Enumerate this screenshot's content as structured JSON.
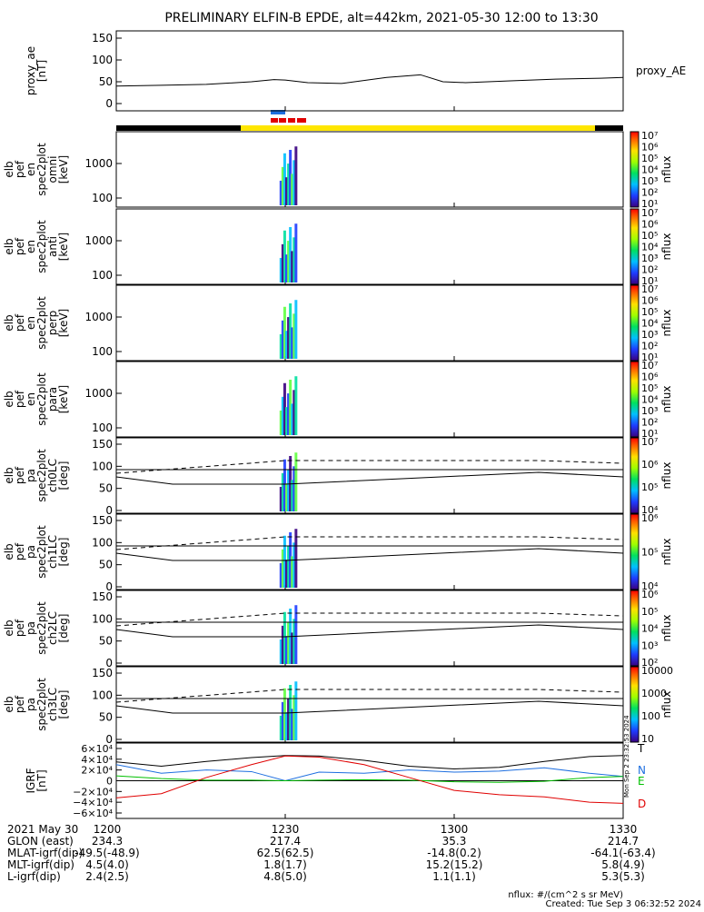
{
  "title": "PRELIMINARY ELFIN-B EPDE, alt=442km, 2021-05-30 12:00 to 13:30",
  "colors": {
    "black": "#000000",
    "yellow": "#ffe600",
    "blue": "#1e6fe0",
    "red": "#e00000",
    "green": "#00c000",
    "axis": "#000000"
  },
  "x_axis": {
    "tick_labels": [
      "1200",
      "1230",
      "1300",
      "1330"
    ]
  },
  "panels": [
    {
      "id": "proxy_ae",
      "ylabel_lines": [
        "proxy_ae",
        "[nT]"
      ],
      "yticks": [
        "0",
        "50",
        "100",
        "150"
      ],
      "right_label": "proxy_AE"
    },
    {
      "id": "en_omni",
      "ylabel_lines": [
        "elb",
        "pef",
        "en",
        "spec2plot",
        "omni",
        "[keV]"
      ],
      "yticks": [
        "100",
        "1000"
      ],
      "colorbar_label": "nflux",
      "colorbar_ticks": [
        "10¹",
        "10²",
        "10³",
        "10⁴",
        "10⁵",
        "10⁶",
        "10⁷"
      ]
    },
    {
      "id": "en_anti",
      "ylabel_lines": [
        "elb",
        "pef",
        "en",
        "spec2plot",
        "anti",
        "[keV]"
      ],
      "yticks": [
        "100",
        "1000"
      ],
      "colorbar_label": "nflux",
      "colorbar_ticks": [
        "10¹",
        "10²",
        "10³",
        "10⁴",
        "10⁵",
        "10⁶",
        "10⁷"
      ]
    },
    {
      "id": "en_perp",
      "ylabel_lines": [
        "elb",
        "pef",
        "en",
        "spec2plot",
        "perp",
        "[keV]"
      ],
      "yticks": [
        "100",
        "1000"
      ],
      "colorbar_label": "nflux",
      "colorbar_ticks": [
        "10¹",
        "10²",
        "10³",
        "10⁴",
        "10⁵",
        "10⁶",
        "10⁷"
      ]
    },
    {
      "id": "en_para",
      "ylabel_lines": [
        "elb",
        "pef",
        "en",
        "spec2plot",
        "para",
        "[keV]"
      ],
      "yticks": [
        "100",
        "1000"
      ],
      "colorbar_label": "nflux",
      "colorbar_ticks": [
        "10¹",
        "10²",
        "10³",
        "10⁴",
        "10⁵",
        "10⁶",
        "10⁷"
      ]
    },
    {
      "id": "pa_ch0",
      "ylabel_lines": [
        "elb",
        "pef",
        "pa",
        "spec2plot",
        "ch0LC",
        "[deg]"
      ],
      "yticks": [
        "0",
        "50",
        "100",
        "150"
      ],
      "colorbar_label": "nflux",
      "colorbar_ticks": [
        "10⁴",
        "10⁵",
        "10⁶",
        "10⁷"
      ]
    },
    {
      "id": "pa_ch1",
      "ylabel_lines": [
        "elb",
        "pef",
        "pa",
        "spec2plot",
        "ch1LC",
        "[deg]"
      ],
      "yticks": [
        "0",
        "50",
        "100",
        "150"
      ],
      "colorbar_label": "nflux",
      "colorbar_ticks": [
        "10⁴",
        "10⁵",
        "10⁶"
      ]
    },
    {
      "id": "pa_ch2",
      "ylabel_lines": [
        "elb",
        "pef",
        "pa",
        "spec2plot",
        "ch2LC",
        "[deg]"
      ],
      "yticks": [
        "0",
        "50",
        "100",
        "150"
      ],
      "colorbar_label": "nflux",
      "colorbar_ticks": [
        "10²",
        "10³",
        "10⁴",
        "10⁵",
        "10⁶"
      ]
    },
    {
      "id": "pa_ch3",
      "ylabel_lines": [
        "elb",
        "pef",
        "pa",
        "spec2plot",
        "ch3LC",
        "[deg]"
      ],
      "yticks": [
        "0",
        "50",
        "100",
        "150"
      ],
      "colorbar_label": "nflux",
      "colorbar_ticks": [
        "10",
        "100",
        "1000",
        "10000"
      ]
    },
    {
      "id": "igrf",
      "ylabel_lines": [
        "IGRF",
        "[nT]"
      ],
      "yticks": [
        "−6×10⁴",
        "−4×10⁴",
        "−2×10⁴",
        "0",
        "2×10⁴",
        "4×10⁴",
        "6×10⁴"
      ],
      "legend": [
        "T",
        "N",
        "E",
        "D"
      ]
    }
  ],
  "footer": {
    "rows": [
      {
        "label": "2021 May 30",
        "values": [
          "1200",
          "1230",
          "1300",
          "1330"
        ]
      },
      {
        "label": "GLON (east)",
        "values": [
          "234.3",
          "217.4",
          "35.3",
          "214.7"
        ]
      },
      {
        "label": "MLAT-igrf(dip)",
        "values": [
          "-49.5(-48.9)",
          "62.5(62.5)",
          "-14.8(0.2)",
          "-64.1(-63.4)"
        ]
      },
      {
        "label": "MLT-igrf(dip)",
        "values": [
          "4.5(4.0)",
          "1.8(1.7)",
          "15.2(15.2)",
          "5.8(4.9)"
        ]
      },
      {
        "label": "L-igrf(dip)",
        "values": [
          "2.4(2.5)",
          "4.8(5.0)",
          "1.1(1.1)",
          "5.3(5.3)"
        ]
      }
    ],
    "units_note": "nflux: #/(cm^2 s sr MeV)",
    "created": "Created: Tue Sep  3 06:32:52 2024",
    "side_stamp": "Mon Sep  2 23:32:53 2024"
  },
  "chart_data": [
    {
      "type": "line",
      "panel": "proxy_ae",
      "ylabel": "proxy_ae [nT]",
      "ylim": [
        0,
        150
      ],
      "x": [
        "12:00",
        "12:08",
        "12:16",
        "12:24",
        "12:28",
        "12:30",
        "12:34",
        "12:40",
        "12:48",
        "12:54",
        "12:58",
        "13:02",
        "13:10",
        "13:18",
        "13:26",
        "13:30"
      ],
      "series": [
        {
          "name": "proxy_AE",
          "values": [
            40,
            42,
            44,
            50,
            55,
            54,
            48,
            46,
            60,
            66,
            50,
            48,
            52,
            56,
            58,
            60
          ]
        }
      ]
    },
    {
      "type": "heatmap",
      "panel": "energy spectrograms",
      "yscale": "log",
      "ylim_keV": [
        60,
        7000
      ],
      "active_interval": [
        "12:29",
        "12:32"
      ]
    },
    {
      "type": "line",
      "panel": "igrf",
      "ylim": [
        -60000,
        60000
      ],
      "x": [
        "12:00",
        "12:08",
        "12:16",
        "12:24",
        "12:30",
        "12:36",
        "12:44",
        "12:52",
        "13:00",
        "13:08",
        "13:16",
        "13:24",
        "13:30"
      ],
      "series": [
        {
          "name": "T",
          "values": [
            35000,
            27000,
            36000,
            43000,
            47000,
            46000,
            38000,
            27000,
            22000,
            25000,
            36000,
            45000,
            47000
          ]
        },
        {
          "name": "N",
          "values": [
            30000,
            14000,
            20000,
            17000,
            0,
            16000,
            14000,
            20000,
            16000,
            18000,
            24000,
            14000,
            8000
          ]
        },
        {
          "name": "E",
          "values": [
            9000,
            4000,
            1000,
            1000,
            0,
            1000,
            2000,
            1000,
            -2000,
            -3000,
            -1000,
            6000,
            8000
          ]
        },
        {
          "name": "D",
          "values": [
            -32000,
            -24000,
            6000,
            30000,
            46000,
            44000,
            30000,
            6000,
            -18000,
            -26000,
            -30000,
            -40000,
            -42000
          ]
        }
      ]
    }
  ]
}
